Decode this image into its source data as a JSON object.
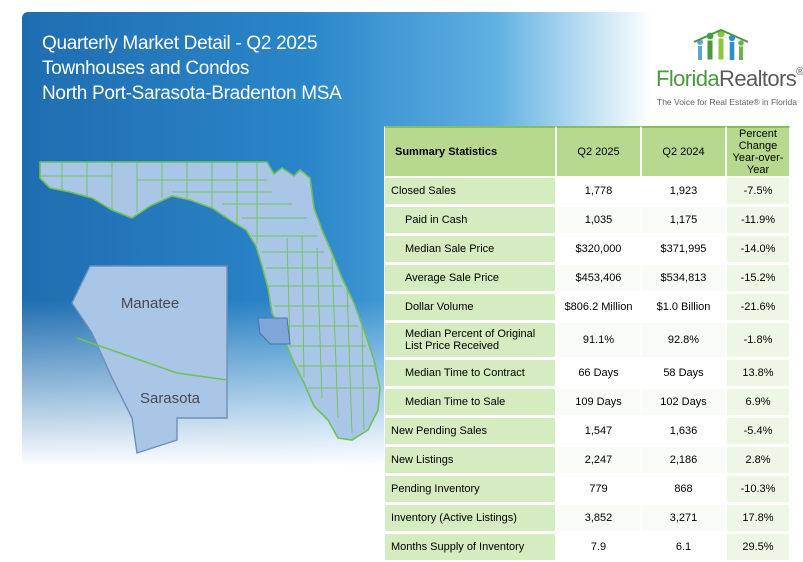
{
  "header": {
    "line1": "Quarterly Market Detail - Q2 2025",
    "line2": "Townhouses and Condos",
    "line3": "North Port-Sarasota-Bradenton MSA"
  },
  "logo": {
    "name_part1": "Florida",
    "name_part2": "Realtors",
    "registered": "®",
    "tagline": "The Voice for Real Estate® in Florida",
    "icon": "florida-realtors-people-icon"
  },
  "map": {
    "county1": "Manatee",
    "county2": "Sarasota"
  },
  "colors": {
    "header_blue": "#2a86c9",
    "map_highlight": "#a9c6e6",
    "county_border": "#6fc05a",
    "table_green": "#b6d98f"
  },
  "table": {
    "headers": [
      "Summary Statistics",
      "Q2 2025",
      "Q2 2024",
      "Percent Change Year-over-Year"
    ],
    "rows": [
      {
        "label": "Closed Sales",
        "q2025": "1,778",
        "q2024": "1,923",
        "pct": "-7.5%",
        "indent": false
      },
      {
        "label": "Paid in Cash",
        "q2025": "1,035",
        "q2024": "1,175",
        "pct": "-11.9%",
        "indent": true
      },
      {
        "label": "Median Sale Price",
        "q2025": "$320,000",
        "q2024": "$371,995",
        "pct": "-14.0%",
        "indent": true
      },
      {
        "label": "Average Sale Price",
        "q2025": "$453,406",
        "q2024": "$534,813",
        "pct": "-15.2%",
        "indent": true
      },
      {
        "label": "Dollar Volume",
        "q2025": "$806.2 Million",
        "q2024": "$1.0 Billion",
        "pct": "-21.6%",
        "indent": true
      },
      {
        "label": "Median Percent of Original List Price Received",
        "q2025": "91.1%",
        "q2024": "92.8%",
        "pct": "-1.8%",
        "indent": true
      },
      {
        "label": "Median Time to Contract",
        "q2025": "66 Days",
        "q2024": "58 Days",
        "pct": "13.8%",
        "indent": true
      },
      {
        "label": "Median Time to Sale",
        "q2025": "109 Days",
        "q2024": "102 Days",
        "pct": "6.9%",
        "indent": true
      },
      {
        "label": "New Pending Sales",
        "q2025": "1,547",
        "q2024": "1,636",
        "pct": "-5.4%",
        "indent": false
      },
      {
        "label": "New Listings",
        "q2025": "2,247",
        "q2024": "2,186",
        "pct": "2.8%",
        "indent": false
      },
      {
        "label": "Pending Inventory",
        "q2025": "779",
        "q2024": "868",
        "pct": "-10.3%",
        "indent": false
      },
      {
        "label": "Inventory (Active Listings)",
        "q2025": "3,852",
        "q2024": "3,271",
        "pct": "17.8%",
        "indent": false
      },
      {
        "label": "Months Supply of Inventory",
        "q2025": "7.9",
        "q2024": "6.1",
        "pct": "29.5%",
        "indent": false
      }
    ]
  }
}
